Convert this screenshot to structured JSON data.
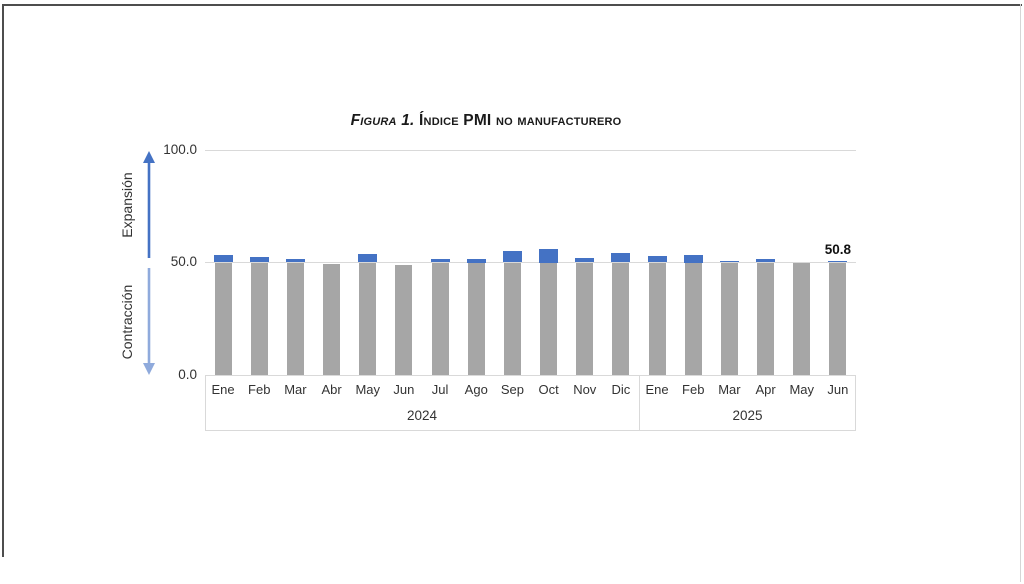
{
  "page": {
    "title_prefix": "Figura 1.",
    "title_main": "Índice PMI no manufacturero"
  },
  "axis": {
    "y_tick_labels": [
      "100.0",
      "50.0",
      "0.0"
    ],
    "expansion_label": "Expansión",
    "contraction_label": "Contracción"
  },
  "chart_data": {
    "type": "bar",
    "title": "Figura 1. Índice PMI no manufacturero",
    "xlabel": "",
    "ylabel": "",
    "ylim": [
      0,
      100
    ],
    "yticks": [
      100.0,
      50.0,
      0.0
    ],
    "baseline": 50,
    "grid": "horizontal",
    "categories": [
      "Ene",
      "Feb",
      "Mar",
      "Abr",
      "May",
      "Jun",
      "Jul",
      "Ago",
      "Sep",
      "Oct",
      "Nov",
      "Dic",
      "Ene",
      "Feb",
      "Mar",
      "Apr",
      "May",
      "Jun"
    ],
    "values": [
      53.4,
      52.6,
      51.4,
      49.4,
      53.8,
      48.8,
      51.4,
      51.5,
      54.9,
      56.0,
      52.1,
      54.1,
      52.8,
      53.5,
      50.8,
      51.6,
      49.9,
      50.8
    ],
    "groups": [
      {
        "label": "2024",
        "count": 12
      },
      {
        "label": "2025",
        "count": 6
      }
    ],
    "annotation": {
      "index": 17,
      "text": "50.8"
    },
    "colors": {
      "bar_above_baseline": "#4472C4",
      "bar_below_baseline": "#A6A6A6",
      "expansion_arrow": "#4472C4",
      "contraction_arrow": "#8FAADC",
      "gridline": "#D9D9D9",
      "axis_box_border": "#D9D9D9"
    }
  }
}
